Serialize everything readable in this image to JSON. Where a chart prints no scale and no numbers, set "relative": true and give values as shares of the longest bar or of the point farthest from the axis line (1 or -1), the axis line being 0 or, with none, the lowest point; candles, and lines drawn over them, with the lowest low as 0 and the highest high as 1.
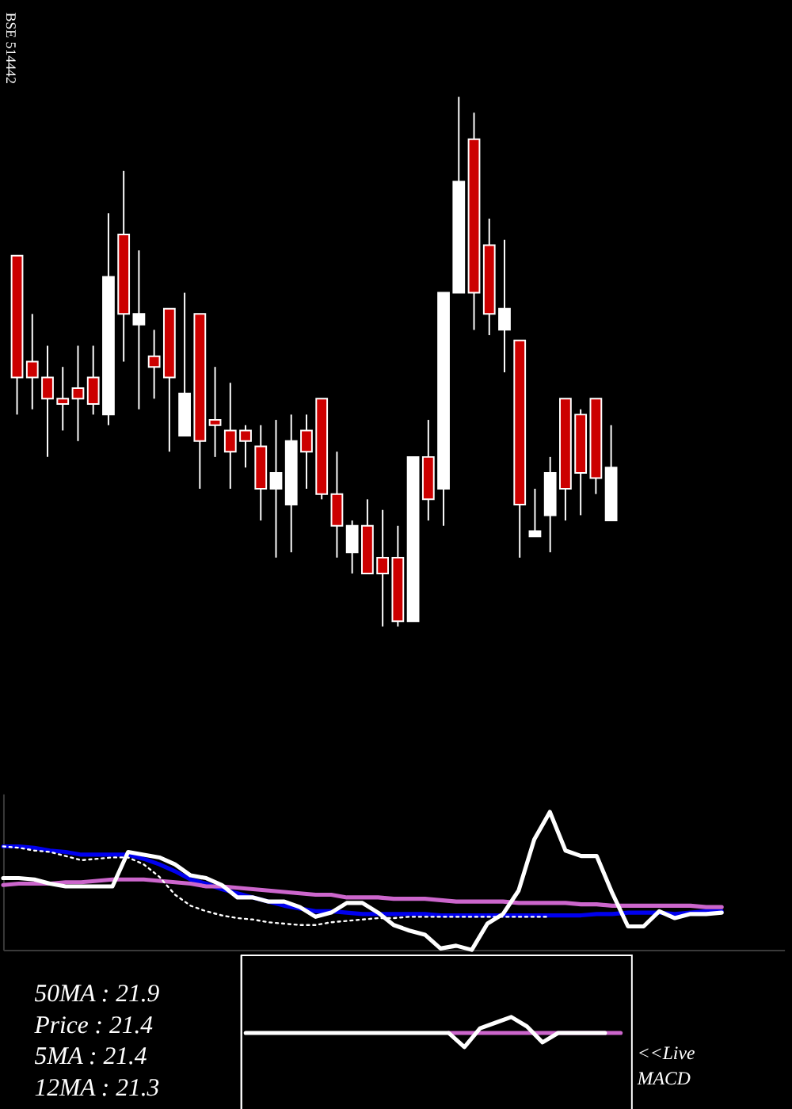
{
  "chart_data": [
    {
      "type": "candlestick",
      "title": "BSE 514442",
      "relative": true,
      "categories": [
        null,
        null,
        null,
        null,
        null,
        null,
        null,
        null,
        null,
        null,
        null,
        null,
        null,
        null,
        null,
        null,
        null,
        null,
        null,
        null,
        null,
        null,
        null,
        null,
        null,
        null,
        null,
        null,
        null,
        null,
        null,
        null,
        null,
        null,
        null,
        null,
        null,
        null,
        null,
        null
      ],
      "ohlc": [
        [
          0.7,
          0.7,
          0.4,
          0.47
        ],
        [
          0.5,
          0.59,
          0.41,
          0.47
        ],
        [
          0.47,
          0.53,
          0.32,
          0.43
        ],
        [
          0.43,
          0.49,
          0.37,
          0.42
        ],
        [
          0.45,
          0.53,
          0.35,
          0.43
        ],
        [
          0.47,
          0.53,
          0.4,
          0.42
        ],
        [
          0.4,
          0.78,
          0.38,
          0.66
        ],
        [
          0.74,
          0.86,
          0.5,
          0.59
        ],
        [
          0.57,
          0.71,
          0.41,
          0.59
        ],
        [
          0.51,
          0.56,
          0.43,
          0.49
        ],
        [
          0.6,
          0.6,
          0.33,
          0.47
        ],
        [
          0.36,
          0.63,
          0.36,
          0.44
        ],
        [
          0.59,
          0.59,
          0.26,
          0.35
        ],
        [
          0.39,
          0.49,
          0.32,
          0.38
        ],
        [
          0.37,
          0.46,
          0.26,
          0.33
        ],
        [
          0.37,
          0.38,
          0.3,
          0.35
        ],
        [
          0.34,
          0.38,
          0.2,
          0.26
        ],
        [
          0.26,
          0.39,
          0.13,
          0.29
        ],
        [
          0.23,
          0.4,
          0.14,
          0.35
        ],
        [
          0.37,
          0.4,
          0.26,
          0.33
        ],
        [
          0.43,
          0.43,
          0.24,
          0.25
        ],
        [
          0.25,
          0.33,
          0.13,
          0.19
        ],
        [
          0.14,
          0.2,
          0.1,
          0.19
        ],
        [
          0.19,
          0.24,
          0.1,
          0.1
        ],
        [
          0.13,
          0.22,
          0,
          0.1
        ],
        [
          0.13,
          0.19,
          0,
          0.01
        ],
        [
          0.01,
          0.32,
          0.01,
          0.32
        ],
        [
          0.32,
          0.39,
          0.2,
          0.24
        ],
        [
          0.26,
          0.63,
          0.19,
          0.63
        ],
        [
          0.63,
          1,
          0.63,
          0.84
        ],
        [
          0.92,
          0.97,
          0.56,
          0.63
        ],
        [
          0.72,
          0.77,
          0.55,
          0.59
        ],
        [
          0.56,
          0.73,
          0.48,
          0.6
        ],
        [
          0.54,
          0.54,
          0.13,
          0.23
        ],
        [
          0.17,
          0.26,
          0.17,
          0.18
        ],
        [
          0.21,
          0.32,
          0.14,
          0.29
        ],
        [
          0.43,
          0.43,
          0.2,
          0.26
        ],
        [
          0.4,
          0.41,
          0.21,
          0.29
        ],
        [
          0.43,
          0.43,
          0.25,
          0.28
        ],
        [
          0.2,
          0.38,
          0.2,
          0.3
        ]
      ],
      "colors": [
        "#cc0000",
        "#cc0000",
        "#cc0000",
        "#cc0000",
        "#cc0000",
        "#cc0000",
        "#ffffff",
        "#cc0000",
        "#ffffff",
        "#cc0000",
        "#cc0000",
        "#ffffff",
        "#cc0000",
        "#cc0000",
        "#cc0000",
        "#cc0000",
        "#cc0000",
        "#ffffff",
        "#ffffff",
        "#cc0000",
        "#cc0000",
        "#cc0000",
        "#ffffff",
        "#cc0000",
        "#cc0000",
        "#cc0000",
        "#ffffff",
        "#cc0000",
        "#ffffff",
        "#ffffff",
        "#cc0000",
        "#cc0000",
        "#ffffff",
        "#cc0000",
        "#ffffff",
        "#ffffff",
        "#cc0000",
        "#cc0000",
        "#cc0000",
        "#ffffff"
      ]
    },
    {
      "type": "line",
      "relative": true,
      "categories": [
        null,
        null,
        null,
        null,
        null,
        null,
        null,
        null,
        null,
        null,
        null,
        null,
        null,
        null,
        null,
        null,
        null,
        null,
        null,
        null,
        null,
        null,
        null,
        null,
        null,
        null,
        null,
        null,
        null,
        null,
        null,
        null,
        null,
        null,
        null,
        null,
        null,
        null,
        null,
        null,
        null,
        null,
        null,
        null,
        null,
        null,
        null
      ],
      "series": [
        {
          "color": "#0000ee",
          "values": [
            0.75,
            0.75,
            0.74,
            0.72,
            0.71,
            0.69,
            0.69,
            0.69,
            0.69,
            0.66,
            0.62,
            0.57,
            0.51,
            0.48,
            0.44,
            0.41,
            0.38,
            0.35,
            0.32,
            0.3,
            0.28,
            0.28,
            0.27,
            0.26,
            0.26,
            0.26,
            0.26,
            0.26,
            0.25,
            0.25,
            0.25,
            0.25,
            0.25,
            0.25,
            0.25,
            0.25,
            0.25,
            0.25,
            0.26,
            0.26,
            0.27,
            0.27,
            0.27,
            0.26,
            0.27,
            0.28,
            0.28
          ]
        },
        {
          "color": "#cc66cc",
          "values": [
            0.47,
            0.48,
            0.48,
            0.48,
            0.49,
            0.49,
            0.5,
            0.51,
            0.51,
            0.51,
            0.5,
            0.49,
            0.48,
            0.46,
            0.46,
            0.45,
            0.44,
            0.43,
            0.42,
            0.41,
            0.4,
            0.4,
            0.38,
            0.38,
            0.38,
            0.37,
            0.37,
            0.37,
            0.36,
            0.35,
            0.35,
            0.35,
            0.35,
            0.34,
            0.34,
            0.34,
            0.34,
            0.33,
            0.33,
            0.32,
            0.32,
            0.32,
            0.32,
            0.32,
            0.32,
            0.31,
            0.31
          ]
        },
        {
          "color": "#ffffff",
          "line_style": "dotted",
          "values": [
            0.75,
            0.74,
            0.72,
            0.71,
            0.68,
            0.65,
            0.66,
            0.67,
            0.67,
            0.62,
            0.53,
            0.4,
            0.32,
            0.28,
            0.25,
            0.23,
            0.22,
            0.2,
            0.19,
            0.18,
            0.18,
            0.2,
            0.21,
            0.22,
            0.23,
            0.23,
            0.24,
            0.24,
            0.24,
            0.24,
            0.24,
            0.24,
            0.24,
            0.24,
            0.24,
            0.24,
            null,
            null,
            null,
            null,
            null,
            null,
            null,
            null,
            null,
            null,
            null
          ]
        },
        {
          "color": "#ffffff",
          "values": [
            0.52,
            0.52,
            0.51,
            0.48,
            0.46,
            0.46,
            0.46,
            0.46,
            0.71,
            0.69,
            0.67,
            0.62,
            0.54,
            0.52,
            0.47,
            0.38,
            0.38,
            0.35,
            0.35,
            0.31,
            0.24,
            0.27,
            0.34,
            0.34,
            0.27,
            0.18,
            0.14,
            0.11,
            0.01,
            0.03,
            0,
            0.19,
            0.26,
            0.43,
            0.8,
            1,
            0.72,
            0.68,
            0.68,
            0.41,
            0.17,
            0.17,
            0.28,
            0.23,
            0.26,
            0.26,
            0.27
          ]
        }
      ]
    },
    {
      "type": "line",
      "relative": true,
      "categories": [
        null,
        null,
        null,
        null,
        null,
        null,
        null,
        null,
        null,
        null,
        null,
        null,
        null,
        null,
        null,
        null,
        null,
        null,
        null,
        null,
        null,
        null,
        null,
        null,
        null
      ],
      "series": [
        {
          "color": "#cc66cc",
          "values": [
            null,
            null,
            null,
            null,
            null,
            null,
            null,
            null,
            null,
            null,
            null,
            null,
            null,
            0.83,
            0.83,
            0.83,
            0.83,
            0.83,
            0.83,
            0.83,
            0.83,
            null,
            null,
            0.83,
            0.83
          ]
        },
        {
          "color": "#ffffff",
          "values": [
            0.83,
            0.83,
            0.83,
            0.83,
            0.83,
            0.83,
            0.83,
            0.83,
            0.83,
            0.83,
            0.83,
            0.83,
            0.83,
            0.83,
            0.68,
            0.88,
            0.94,
            1,
            0.9,
            0.73,
            0.83,
            0.83,
            0.83,
            0.83,
            null
          ]
        }
      ],
      "annotations": [
        "50MA : 21.9",
        "Price   : 21.4",
        "5MA : 21.4",
        "12MA : 21.3",
        "<<Live MACD"
      ]
    }
  ]
}
